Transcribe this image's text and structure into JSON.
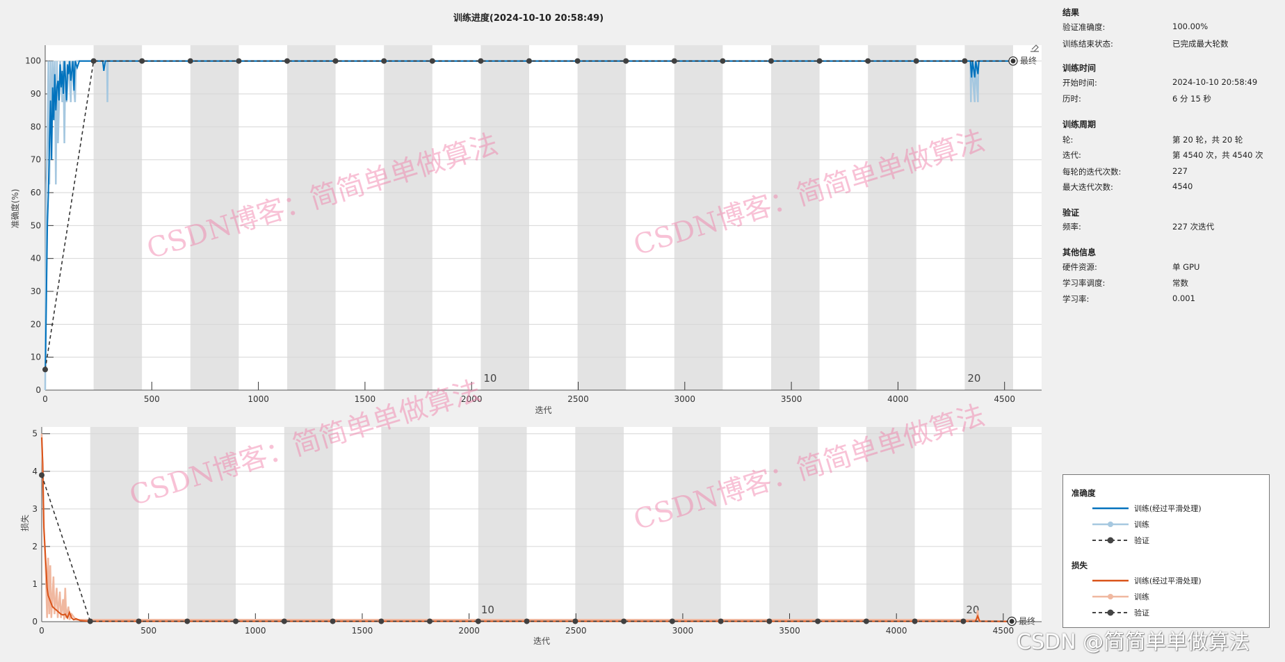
{
  "title": "训练进度(2024-10-10 20:58:49)",
  "panel": {
    "sections": [
      {
        "heading": "结果",
        "rows": [
          [
            "验证准确度:",
            "100.00%"
          ],
          [
            "训练结束状态:",
            "已完成最大轮数"
          ]
        ]
      },
      {
        "heading": "训练时间",
        "rows": [
          [
            "开始时间:",
            "2024-10-10 20:58:49"
          ],
          [
            "历时:",
            "6 分 15 秒"
          ]
        ]
      },
      {
        "heading": "训练周期",
        "rows": [
          [
            "轮:",
            "第 20 轮，共 20 轮"
          ],
          [
            "迭代:",
            "第 4540 次，共 4540 次"
          ],
          [
            "每轮的迭代次数:",
            "227"
          ],
          [
            "最大迭代次数:",
            "4540"
          ]
        ]
      },
      {
        "heading": "验证",
        "rows": [
          [
            "频率:",
            "227 次迭代"
          ]
        ]
      },
      {
        "heading": "其他信息",
        "rows": [
          [
            "硬件资源:",
            "单 GPU"
          ],
          [
            "学习率调度:",
            "常数"
          ],
          [
            "学习率:",
            "0.001"
          ]
        ]
      }
    ]
  },
  "legend": {
    "accuracy_heading": "准确度",
    "loss_heading": "损失",
    "smoothed": "训练(经过平滑处理)",
    "train": "训练",
    "validation": "验证"
  },
  "watermark": "CSDN博客：简简单单做算法",
  "corner_watermark": "CSDN @简简单单做算法",
  "final_label": "最终",
  "colors": {
    "acc_smoothed": "#0072bd",
    "acc_train": "#a6c8e0",
    "loss_smoothed": "#d95319",
    "loss_train": "#f0b8a0",
    "validation": "#333333",
    "band": "#e3e3e3"
  },
  "chart_data": [
    {
      "type": "line",
      "ylabel": "准确度(%)",
      "xlabel": "迭代",
      "xlim": [
        0,
        4650
      ],
      "ylim": [
        0,
        104.8
      ],
      "xticks": [
        0,
        500,
        1000,
        1500,
        2000,
        2500,
        3000,
        3500,
        4000,
        4500
      ],
      "yticks": [
        0,
        10,
        20,
        30,
        40,
        50,
        60,
        70,
        80,
        90,
        100
      ],
      "grid": true,
      "iterations_per_epoch": 227,
      "epoch_labels": [
        {
          "epoch": 10,
          "label": "10"
        },
        {
          "epoch": 20,
          "label": "20"
        }
      ],
      "series": [
        {
          "name": "训练(经过平滑处理)",
          "points": [
            [
              1,
              6
            ],
            [
              5,
              25
            ],
            [
              10,
              50
            ],
            [
              15,
              60
            ],
            [
              20,
              75
            ],
            [
              25,
              88
            ],
            [
              30,
              70
            ],
            [
              35,
              92
            ],
            [
              40,
              82
            ],
            [
              45,
              96
            ],
            [
              50,
              85
            ],
            [
              55,
              92
            ],
            [
              60,
              94
            ],
            [
              65,
              88
            ],
            [
              70,
              99
            ],
            [
              75,
              92
            ],
            [
              80,
              97
            ],
            [
              85,
              90
            ],
            [
              90,
              100
            ],
            [
              95,
              95
            ],
            [
              100,
              88
            ],
            [
              105,
              99
            ],
            [
              110,
              96
            ],
            [
              115,
              100
            ],
            [
              120,
              94
            ],
            [
              130,
              100
            ],
            [
              135,
              91
            ],
            [
              140,
              100
            ],
            [
              150,
              98
            ],
            [
              160,
              100
            ],
            [
              270,
              100
            ],
            [
              275,
              97
            ],
            [
              282,
              100
            ],
            [
              4340,
              100
            ],
            [
              4345,
              95
            ],
            [
              4350,
              100
            ],
            [
              4360,
              95
            ],
            [
              4365,
              100
            ],
            [
              4375,
              96
            ],
            [
              4380,
              100
            ],
            [
              4540,
              100
            ]
          ]
        },
        {
          "name": "训练",
          "points": [
            [
              0,
              0
            ],
            [
              5,
              62.5
            ],
            [
              10,
              75
            ],
            [
              15,
              100
            ],
            [
              20,
              62.5
            ],
            [
              25,
              100
            ],
            [
              30,
              75
            ],
            [
              35,
              100
            ],
            [
              40,
              87.5
            ],
            [
              45,
              100
            ],
            [
              50,
              62.5
            ],
            [
              55,
              100
            ],
            [
              60,
              75
            ],
            [
              70,
              100
            ],
            [
              80,
              87.5
            ],
            [
              85,
              100
            ],
            [
              90,
              75
            ],
            [
              95,
              100
            ],
            [
              100,
              87.5
            ],
            [
              110,
              100
            ],
            [
              120,
              87.5
            ],
            [
              125,
              100
            ],
            [
              140,
              87.5
            ],
            [
              145,
              100
            ],
            [
              290,
              100
            ],
            [
              292,
              87.5
            ],
            [
              294,
              100
            ],
            [
              4340,
              100
            ],
            [
              4342,
              87.5
            ],
            [
              4344,
              100
            ],
            [
              4360,
              87.5
            ],
            [
              4362,
              100
            ],
            [
              4375,
              87.5
            ],
            [
              4377,
              100
            ],
            [
              4540,
              100
            ]
          ]
        },
        {
          "name": "验证",
          "x": [
            0,
            227,
            454,
            681,
            908,
            1135,
            1362,
            1589,
            1816,
            2043,
            2270,
            2497,
            2724,
            2951,
            3178,
            3405,
            3632,
            3859,
            4086,
            4313,
            4540
          ],
          "y": [
            6.25,
            100,
            100,
            100,
            100,
            100,
            100,
            100,
            100,
            100,
            100,
            100,
            100,
            100,
            100,
            100,
            100,
            100,
            100,
            100,
            100
          ]
        }
      ]
    },
    {
      "type": "line",
      "ylabel": "损失",
      "xlabel": "迭代",
      "xlim": [
        0,
        4660
      ],
      "ylim": [
        0,
        5.18
      ],
      "xticks": [
        0,
        500,
        1000,
        1500,
        2000,
        2500,
        3000,
        3500,
        4000,
        4500
      ],
      "yticks": [
        0,
        1,
        2,
        3,
        4,
        5
      ],
      "grid": true,
      "iterations_per_epoch": 227,
      "epoch_labels": [
        {
          "epoch": 10,
          "label": "10"
        },
        {
          "epoch": 20,
          "label": "20"
        }
      ],
      "series": [
        {
          "name": "训练(经过平滑处理)",
          "points": [
            [
              0,
              4.9
            ],
            [
              5,
              4.2
            ],
            [
              10,
              2.5
            ],
            [
              15,
              2.0
            ],
            [
              20,
              1.5
            ],
            [
              25,
              0.9
            ],
            [
              30,
              0.7
            ],
            [
              40,
              0.55
            ],
            [
              50,
              0.4
            ],
            [
              60,
              0.35
            ],
            [
              70,
              0.3
            ],
            [
              80,
              0.25
            ],
            [
              90,
              0.2
            ],
            [
              100,
              0.18
            ],
            [
              110,
              0.2
            ],
            [
              120,
              0.1
            ],
            [
              130,
              0.25
            ],
            [
              140,
              0.1
            ],
            [
              150,
              0.05
            ],
            [
              160,
              0.08
            ],
            [
              180,
              0.03
            ],
            [
              220,
              0.01
            ],
            [
              4370,
              0.01
            ],
            [
              4380,
              0.15
            ],
            [
              4390,
              0.01
            ],
            [
              4540,
              0.005
            ]
          ]
        },
        {
          "name": "训练",
          "points": [
            [
              0,
              5
            ],
            [
              10,
              2.5
            ],
            [
              20,
              1.2
            ],
            [
              25,
              0.1
            ],
            [
              30,
              1.7
            ],
            [
              35,
              0.2
            ],
            [
              40,
              1.5
            ],
            [
              45,
              0.1
            ],
            [
              55,
              1.2
            ],
            [
              60,
              0.2
            ],
            [
              70,
              0.9
            ],
            [
              75,
              0.1
            ],
            [
              85,
              0.8
            ],
            [
              90,
              0.1
            ],
            [
              100,
              0.6
            ],
            [
              105,
              0.05
            ],
            [
              110,
              0.9
            ],
            [
              115,
              0.1
            ],
            [
              125,
              0.4
            ],
            [
              130,
              0.05
            ],
            [
              140,
              0.2
            ],
            [
              160,
              0.05
            ],
            [
              4375,
              0.05
            ],
            [
              4380,
              0.3
            ],
            [
              4385,
              0.02
            ],
            [
              4540,
              0.01
            ]
          ]
        },
        {
          "name": "验证",
          "x": [
            0,
            227,
            454,
            681,
            908,
            1135,
            1362,
            1589,
            1816,
            2043,
            2270,
            2497,
            2724,
            2951,
            3178,
            3405,
            3632,
            3859,
            4086,
            4313,
            4540
          ],
          "y": [
            3.9,
            0.01,
            0.01,
            0.01,
            0.01,
            0.01,
            0.01,
            0.01,
            0.01,
            0.01,
            0.01,
            0.01,
            0.01,
            0.01,
            0.01,
            0.01,
            0.01,
            0.01,
            0.01,
            0.01,
            0.01
          ]
        }
      ]
    }
  ]
}
